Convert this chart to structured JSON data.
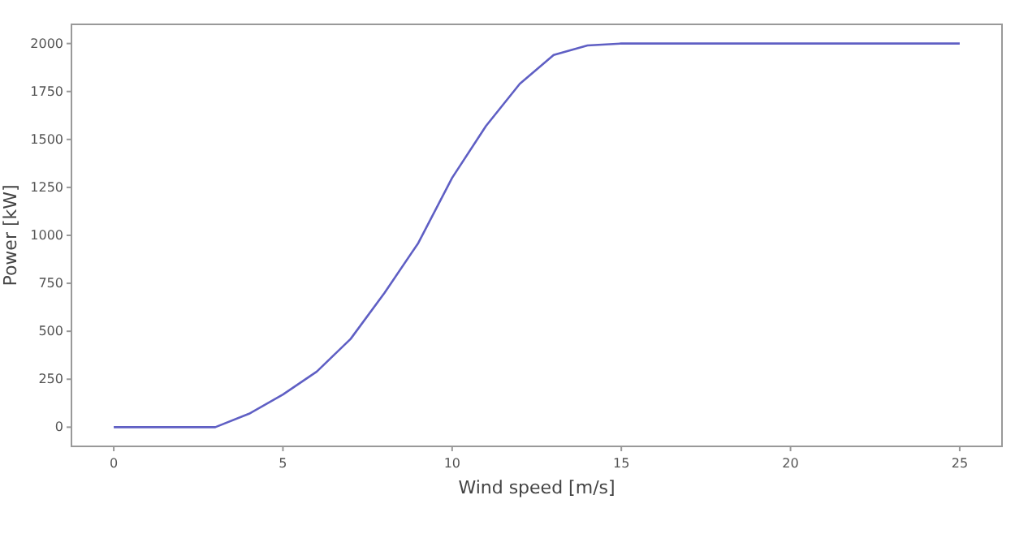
{
  "chart_data": {
    "type": "line",
    "xlabel": "Wind speed [m/s]",
    "ylabel": "Power [kW]",
    "x": [
      0,
      1,
      2,
      3,
      4,
      5,
      6,
      7,
      8,
      9,
      10,
      11,
      12,
      13,
      14,
      15,
      16,
      17,
      18,
      19,
      20,
      21,
      22,
      23,
      24,
      25
    ],
    "series": [
      {
        "color": "#5f5fc4",
        "values": [
          0,
          0,
          0,
          0,
          70,
          170,
          290,
          460,
          700,
          960,
          1300,
          1570,
          1790,
          1940,
          1990,
          2000,
          2000,
          2000,
          2000,
          2000,
          2000,
          2000,
          2000,
          2000,
          2000,
          2000
        ]
      }
    ],
    "xlim": [
      -1.25,
      26.25
    ],
    "xticks": [
      0,
      5,
      10,
      15,
      20,
      25
    ],
    "ylim": [
      -100,
      2100
    ],
    "yticks": [
      0,
      250,
      500,
      750,
      1000,
      1250,
      1500,
      1750,
      2000
    ],
    "grid": false,
    "marker": "none",
    "line_style": "solid"
  }
}
